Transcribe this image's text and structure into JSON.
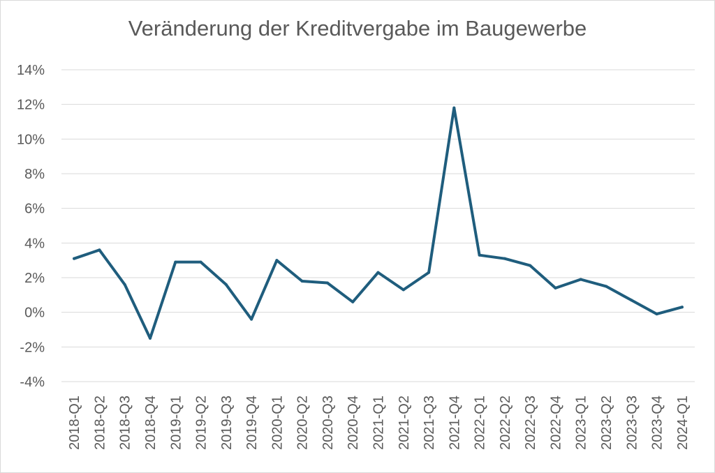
{
  "chart_data": {
    "type": "line",
    "title": "Veränderung der Kreditvergabe im Baugewerbe",
    "xlabel": "",
    "ylabel": "",
    "categories": [
      "2018-Q1",
      "2018-Q2",
      "2018-Q3",
      "2018-Q4",
      "2019-Q1",
      "2019-Q2",
      "2019-Q3",
      "2019-Q4",
      "2020-Q1",
      "2020-Q2",
      "2020-Q3",
      "2020-Q4",
      "2021-Q1",
      "2021-Q2",
      "2021-Q3",
      "2021-Q4",
      "2022-Q1",
      "2022-Q2",
      "2022-Q3",
      "2022-Q4",
      "2023-Q1",
      "2023-Q2",
      "2023-Q3",
      "2023-Q4",
      "2024-Q1"
    ],
    "series": [
      {
        "values": [
          3.1,
          3.6,
          1.6,
          -1.5,
          2.9,
          2.9,
          1.6,
          -0.4,
          3.0,
          1.8,
          1.7,
          0.6,
          2.3,
          1.3,
          2.3,
          11.8,
          3.3,
          3.1,
          2.7,
          1.4,
          1.9,
          1.5,
          0.7,
          -0.1,
          0.3
        ],
        "color": "#1f5d7d"
      }
    ],
    "ylim": [
      -4,
      14
    ],
    "yticks": [
      -4,
      -2,
      0,
      2,
      4,
      6,
      8,
      10,
      12,
      14
    ],
    "ytick_labels": [
      "-4%",
      "-2%",
      "0%",
      "2%",
      "4%",
      "6%",
      "8%",
      "10%",
      "12%",
      "14%"
    ],
    "grid": true,
    "legend": "none"
  }
}
